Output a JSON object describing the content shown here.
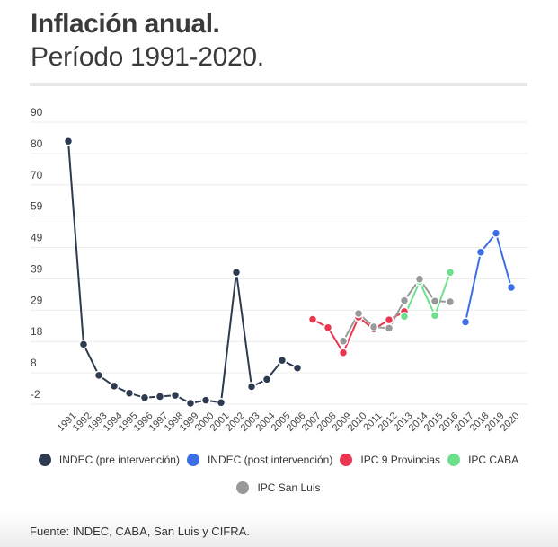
{
  "header": {
    "title": "Inflación anual.",
    "subtitle": "Período 1991-2020."
  },
  "footer": {
    "source": "Fuente: INDEC, CABA, San Luis y CIFRA."
  },
  "chart_data": {
    "type": "line",
    "title": "Inflación anual.",
    "subtitle": "Período 1991-2020.",
    "xlabel": "",
    "ylabel": "",
    "x": [
      "1991",
      "1992",
      "1993",
      "1994",
      "1995",
      "1996",
      "1997",
      "1998",
      "1999",
      "2000",
      "2001",
      "2002",
      "2003",
      "2004",
      "2005",
      "2006",
      "2007",
      "2008",
      "2009",
      "2010",
      "2011",
      "2012",
      "2013",
      "2014",
      "2015",
      "2016",
      "2017",
      "2018",
      "2019",
      "2020"
    ],
    "yticks": [
      "-2",
      "8",
      "18",
      "29",
      "39",
      "49",
      "59",
      "70",
      "80",
      "90"
    ],
    "ylim": [
      -2,
      90
    ],
    "grid": true,
    "legend_position": "bottom",
    "series": [
      {
        "name": "INDEC (pre intervención)",
        "color": "#2e3a4f",
        "values": [
          83.8,
          17.5,
          7.4,
          3.9,
          1.6,
          0.1,
          0.5,
          0.9,
          -1.7,
          -0.7,
          -1.5,
          41.0,
          3.7,
          6.1,
          12.3,
          9.8,
          null,
          null,
          null,
          null,
          null,
          null,
          null,
          null,
          null,
          null,
          null,
          null,
          null,
          null
        ]
      },
      {
        "name": "INDEC (post intervención)",
        "color": "#3d6ee6",
        "values": [
          null,
          null,
          null,
          null,
          null,
          null,
          null,
          null,
          null,
          null,
          null,
          null,
          null,
          null,
          null,
          null,
          null,
          null,
          null,
          null,
          null,
          null,
          null,
          null,
          null,
          null,
          24.8,
          47.6,
          53.8,
          36.1
        ]
      },
      {
        "name": "IPC 9 Provincias",
        "color": "#e8374f",
        "values": [
          null,
          null,
          null,
          null,
          null,
          null,
          null,
          null,
          null,
          null,
          null,
          null,
          null,
          null,
          null,
          null,
          25.7,
          23.0,
          14.8,
          26.4,
          22.5,
          25.5,
          28.2,
          null,
          null,
          null,
          null,
          null,
          null,
          null
        ]
      },
      {
        "name": "IPC CABA",
        "color": "#6ee08c",
        "values": [
          null,
          null,
          null,
          null,
          null,
          null,
          null,
          null,
          null,
          null,
          null,
          null,
          null,
          null,
          null,
          null,
          null,
          null,
          null,
          null,
          null,
          null,
          26.6,
          38.0,
          26.9,
          41.0,
          null,
          null,
          null,
          null
        ]
      },
      {
        "name": "IPC San Luis",
        "color": "#999999",
        "values": [
          null,
          null,
          null,
          null,
          null,
          null,
          null,
          null,
          null,
          null,
          null,
          null,
          null,
          null,
          null,
          null,
          null,
          null,
          18.6,
          27.6,
          23.2,
          22.8,
          31.8,
          38.8,
          31.6,
          31.4,
          null,
          null,
          null,
          null
        ]
      }
    ]
  }
}
